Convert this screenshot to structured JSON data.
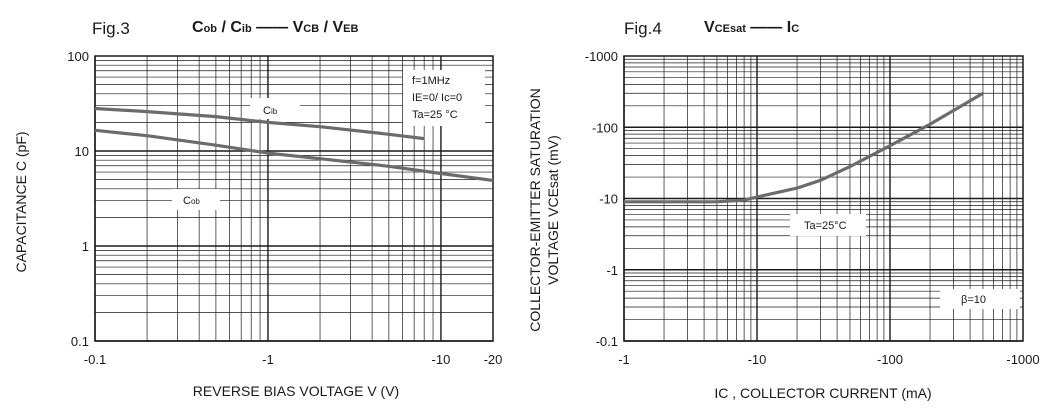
{
  "chart_data": [
    {
      "type": "line",
      "fig": "Fig.3",
      "title_parts": {
        "c1": "C",
        "c1_sub": "ob",
        "sep1": " / ",
        "c2": "C",
        "c2_sub": "ib",
        "dash": " —— ",
        "v1": "V",
        "v1_sub": "CB",
        "sep2": " / ",
        "v2": "V",
        "v2_sub": "EB"
      },
      "xlabel": "REVERSE BIAS VOLTAGE V (V)",
      "ylabel": "CAPACITANCE C (pF)",
      "x_scale": "log",
      "y_scale": "log",
      "xlim": [
        -0.1,
        -20
      ],
      "ylim": [
        0.1,
        100
      ],
      "x_ticks": [
        "-0.1",
        "-1",
        "-10",
        "-20"
      ],
      "y_ticks": [
        "100",
        "10",
        "1",
        "0.1"
      ],
      "conditions": [
        "f=1MHz",
        "IE=0/ Ic=0",
        "Ta=25 °C"
      ],
      "series": [
        {
          "name": "Cib",
          "x": [
            -0.1,
            -0.2,
            -0.5,
            -1,
            -2,
            -5,
            -8
          ],
          "y": [
            28,
            26,
            23,
            20,
            18,
            15,
            13.5
          ]
        },
        {
          "name": "Cob",
          "x": [
            -0.1,
            -0.2,
            -0.5,
            -1,
            -2,
            -5,
            -10,
            -20
          ],
          "y": [
            16.5,
            14.5,
            11.5,
            9.5,
            8.3,
            6.9,
            5.8,
            4.9
          ]
        }
      ],
      "series_labels": {
        "Cib_main": "C",
        "Cib_sub": "ib",
        "Cob_main": "C",
        "Cob_sub": "ob"
      },
      "grid": true
    },
    {
      "type": "line",
      "fig": "Fig.4",
      "title_parts": {
        "v": "V",
        "v_sub": "CEsat",
        "dash": " —— ",
        "i": "I",
        "i_sub": "C"
      },
      "xlabel": "IC , COLLECTOR CURRENT (mA)",
      "ylabel_line1": "COLLECTOR-EMITTER SATURATION",
      "ylabel_line2": "VOLTAGE VCEsat (mV)",
      "x_scale": "log",
      "y_scale": "log",
      "xlim": [
        -1,
        -1000
      ],
      "ylim": [
        -0.1,
        -1000
      ],
      "x_ticks": [
        "-1",
        "-10",
        "-100",
        "-1000"
      ],
      "y_ticks": [
        "-1000",
        "-100",
        "-10",
        "-1",
        "-0.1"
      ],
      "conditions": [
        "Ta=25°C",
        "β=10"
      ],
      "series": [
        {
          "name": "VCEsat",
          "x": [
            -1,
            -2,
            -5,
            -8,
            -10,
            -20,
            -30,
            -50,
            -100,
            -200,
            -500
          ],
          "y": [
            -9,
            -9,
            -9,
            -9.5,
            -10.5,
            -14,
            -18,
            -28,
            -55,
            -110,
            -300
          ]
        }
      ],
      "grid": true
    }
  ]
}
